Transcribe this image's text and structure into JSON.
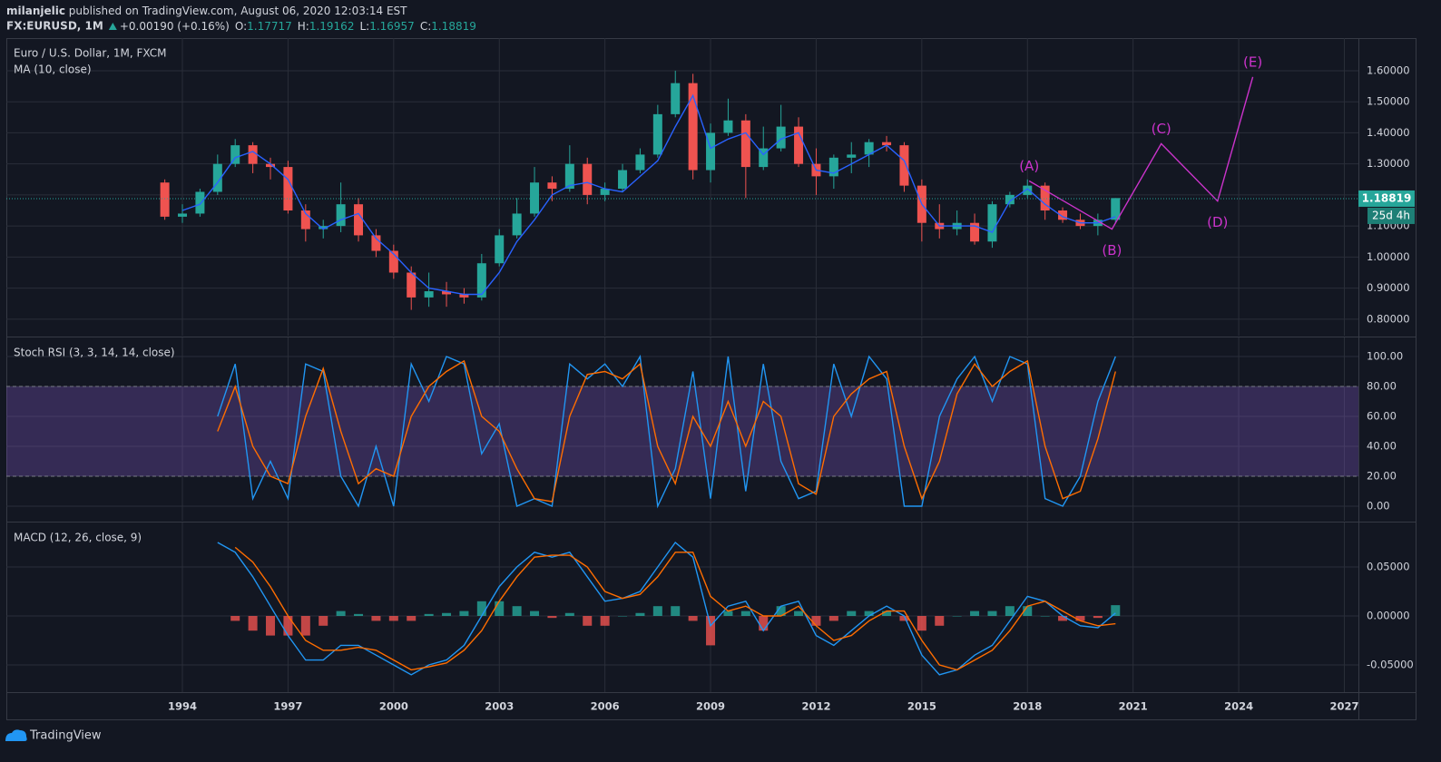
{
  "header": {
    "author": "milanjelic",
    "published": " published on TradingView.com, August 06, 2020 12:03:14 EST",
    "symbol": "FX:EURUSD, 1M",
    "change": "+0.00190 (+0.16%)",
    "ohlc": [
      {
        "label": "O:",
        "value": "1.17717"
      },
      {
        "label": "H:",
        "value": "1.19162"
      },
      {
        "label": "L:",
        "value": "1.16957"
      },
      {
        "label": "C:",
        "value": "1.18819"
      }
    ]
  },
  "footer": {
    "brand": "TradingView"
  },
  "chart_data": [
    {
      "type": "candlestick",
      "title": "Euro / U.S. Dollar, 1M, FXCM",
      "x": [
        1993.5,
        1994.0,
        1994.5,
        1995.0,
        1995.5,
        1996.0,
        1996.5,
        1997.0,
        1997.5,
        1998.0,
        1998.5,
        1999.0,
        1999.5,
        2000.0,
        2000.5,
        2001.0,
        2001.5,
        2002.0,
        2002.5,
        2003.0,
        2003.5,
        2004.0,
        2004.5,
        2005.0,
        2005.5,
        2006.0,
        2006.5,
        2007.0,
        2007.5,
        2008.0,
        2008.5,
        2009.0,
        2009.5,
        2010.0,
        2010.5,
        2011.0,
        2011.5,
        2012.0,
        2012.5,
        2013.0,
        2013.5,
        2014.0,
        2014.5,
        2015.0,
        2015.5,
        2016.0,
        2016.5,
        2017.0,
        2017.5,
        2018.0,
        2018.5,
        2019.0,
        2019.5,
        2020.0,
        2020.5
      ],
      "open": [
        1.24,
        1.13,
        1.14,
        1.21,
        1.3,
        1.36,
        1.3,
        1.29,
        1.15,
        1.09,
        1.1,
        1.17,
        1.07,
        1.02,
        0.95,
        0.87,
        0.89,
        0.88,
        0.87,
        0.98,
        1.07,
        1.14,
        1.24,
        1.22,
        1.3,
        1.2,
        1.22,
        1.28,
        1.33,
        1.46,
        1.56,
        1.28,
        1.4,
        1.44,
        1.29,
        1.35,
        1.42,
        1.3,
        1.26,
        1.32,
        1.33,
        1.37,
        1.36,
        1.23,
        1.11,
        1.09,
        1.11,
        1.05,
        1.17,
        1.2,
        1.23,
        1.15,
        1.12,
        1.1,
        1.12
      ],
      "high": [
        1.25,
        1.17,
        1.22,
        1.33,
        1.38,
        1.37,
        1.32,
        1.31,
        1.17,
        1.12,
        1.24,
        1.19,
        1.09,
        1.04,
        0.97,
        0.95,
        0.92,
        0.9,
        1.01,
        1.09,
        1.19,
        1.29,
        1.26,
        1.36,
        1.32,
        1.24,
        1.3,
        1.35,
        1.49,
        1.6,
        1.59,
        1.43,
        1.51,
        1.46,
        1.42,
        1.49,
        1.45,
        1.35,
        1.33,
        1.37,
        1.38,
        1.39,
        1.37,
        1.25,
        1.17,
        1.15,
        1.14,
        1.18,
        1.21,
        1.25,
        1.24,
        1.16,
        1.14,
        1.14,
        1.19
      ],
      "low": [
        1.12,
        1.11,
        1.13,
        1.2,
        1.29,
        1.27,
        1.25,
        1.14,
        1.05,
        1.06,
        1.08,
        1.05,
        1.0,
        0.93,
        0.83,
        0.84,
        0.84,
        0.85,
        0.86,
        0.97,
        1.06,
        1.13,
        1.18,
        1.21,
        1.17,
        1.18,
        1.21,
        1.27,
        1.32,
        1.45,
        1.25,
        1.24,
        1.39,
        1.19,
        1.28,
        1.34,
        1.29,
        1.2,
        1.22,
        1.27,
        1.29,
        1.34,
        1.21,
        1.05,
        1.06,
        1.07,
        1.04,
        1.03,
        1.16,
        1.19,
        1.12,
        1.11,
        1.09,
        1.07,
        1.11
      ],
      "close": [
        1.13,
        1.14,
        1.21,
        1.3,
        1.36,
        1.3,
        1.29,
        1.15,
        1.09,
        1.1,
        1.17,
        1.07,
        1.02,
        0.95,
        0.87,
        0.89,
        0.88,
        0.87,
        0.98,
        1.07,
        1.14,
        1.24,
        1.22,
        1.3,
        1.2,
        1.22,
        1.28,
        1.33,
        1.46,
        1.56,
        1.28,
        1.4,
        1.44,
        1.29,
        1.35,
        1.42,
        1.3,
        1.26,
        1.32,
        1.33,
        1.37,
        1.36,
        1.23,
        1.11,
        1.09,
        1.11,
        1.05,
        1.17,
        1.2,
        1.23,
        1.15,
        1.12,
        1.1,
        1.12,
        1.19
      ],
      "up_color": "#26a69a",
      "down_color": "#ef5350",
      "series": [
        {
          "name": "MA (10, close)",
          "color": "#2962ff",
          "values": [
            null,
            1.15,
            1.17,
            1.24,
            1.32,
            1.34,
            1.3,
            1.25,
            1.14,
            1.09,
            1.12,
            1.14,
            1.06,
            1.01,
            0.95,
            0.9,
            0.89,
            0.88,
            0.88,
            0.95,
            1.05,
            1.12,
            1.2,
            1.23,
            1.24,
            1.22,
            1.21,
            1.26,
            1.31,
            1.42,
            1.52,
            1.35,
            1.38,
            1.4,
            1.33,
            1.38,
            1.4,
            1.28,
            1.27,
            1.3,
            1.33,
            1.36,
            1.31,
            1.17,
            1.1,
            1.1,
            1.1,
            1.08,
            1.18,
            1.22,
            1.17,
            1.13,
            1.11,
            1.11,
            1.13
          ]
        }
      ],
      "xlim": [
        1989,
        2027.4
      ],
      "xticks": [
        1994,
        1997,
        2000,
        2003,
        2006,
        2009,
        2012,
        2015,
        2018,
        2021,
        2024,
        2027
      ],
      "ylim": [
        0.747,
        1.705
      ],
      "yticks": [
        {
          "value": 0.8,
          "label": "0.80000"
        },
        {
          "value": 0.9,
          "label": "0.90000"
        },
        {
          "value": 1.0,
          "label": "1.00000"
        },
        {
          "value": 1.1,
          "label": "1.10000"
        },
        {
          "value": 1.2,
          "label": "1.20000"
        },
        {
          "value": 1.3,
          "label": "1.30000"
        },
        {
          "value": 1.4,
          "label": "1.40000"
        },
        {
          "value": 1.5,
          "label": "1.50000"
        },
        {
          "value": 1.6,
          "label": "1.60000"
        }
      ],
      "grid": true,
      "last_price": {
        "value": 1.18819,
        "label": "1.18819"
      },
      "countdown": "25d 4h",
      "waves": {
        "color": "#cc33cc",
        "points": [
          {
            "x": 2018.05,
            "y": 1.245,
            "label": "(A)"
          },
          {
            "x": 2020.4,
            "y": 1.09,
            "label": "(B)"
          },
          {
            "x": 2021.8,
            "y": 1.365,
            "label": "(C)"
          },
          {
            "x": 2023.4,
            "y": 1.18,
            "label": "(D)"
          },
          {
            "x": 2024.4,
            "y": 1.58,
            "label": "(E)"
          }
        ]
      }
    },
    {
      "type": "line",
      "title": "Stoch RSI (3, 3, 14, 14, close)",
      "x": [
        1995.0,
        1995.5,
        1996.0,
        1996.5,
        1997.0,
        1997.5,
        1998.0,
        1998.5,
        1999.0,
        1999.5,
        2000.0,
        2000.5,
        2001.0,
        2001.5,
        2002.0,
        2002.5,
        2003.0,
        2003.5,
        2004.0,
        2004.5,
        2005.0,
        2005.5,
        2006.0,
        2006.5,
        2007.0,
        2007.5,
        2008.0,
        2008.5,
        2009.0,
        2009.5,
        2010.0,
        2010.5,
        2011.0,
        2011.5,
        2012.0,
        2012.5,
        2013.0,
        2013.5,
        2014.0,
        2014.5,
        2015.0,
        2015.5,
        2016.0,
        2016.5,
        2017.0,
        2017.5,
        2018.0,
        2018.5,
        2019.0,
        2019.5,
        2020.0,
        2020.5
      ],
      "series": [
        {
          "color": "#2196f3",
          "values": [
            60,
            95,
            5,
            30,
            5,
            95,
            90,
            20,
            0,
            40,
            0,
            95,
            70,
            100,
            95,
            35,
            55,
            0,
            5,
            0,
            95,
            85,
            95,
            80,
            100,
            0,
            25,
            90,
            5,
            100,
            10,
            95,
            30,
            5,
            10,
            95,
            60,
            100,
            85,
            0,
            0,
            60,
            85,
            100,
            70,
            100,
            95,
            5,
            0,
            20,
            70,
            100
          ]
        },
        {
          "color": "#ff6d00",
          "values": [
            50,
            80,
            40,
            20,
            15,
            60,
            92,
            50,
            15,
            25,
            20,
            60,
            80,
            90,
            97,
            60,
            50,
            25,
            5,
            3,
            60,
            88,
            90,
            85,
            95,
            40,
            15,
            60,
            40,
            70,
            40,
            70,
            60,
            15,
            8,
            60,
            75,
            85,
            90,
            40,
            5,
            30,
            75,
            95,
            80,
            90,
            97,
            40,
            5,
            10,
            45,
            90
          ]
        }
      ],
      "band": [
        20,
        80
      ],
      "band_color": "#7e57c2",
      "ylim": [
        -9.7,
        112.7
      ],
      "yticks": [
        {
          "value": 0,
          "label": "0.00"
        },
        {
          "value": 20,
          "label": "20.00"
        },
        {
          "value": 40,
          "label": "40.00"
        },
        {
          "value": 60,
          "label": "60.00"
        },
        {
          "value": 80,
          "label": "80.00"
        },
        {
          "value": 100,
          "label": "100.00"
        }
      ],
      "grid": true
    },
    {
      "type": "macd",
      "title": "MACD (12, 26, close, 9)",
      "x": [
        1995.0,
        1995.5,
        1996.0,
        1996.5,
        1997.0,
        1997.5,
        1998.0,
        1998.5,
        1999.0,
        1999.5,
        2000.0,
        2000.5,
        2001.0,
        2001.5,
        2002.0,
        2002.5,
        2003.0,
        2003.5,
        2004.0,
        2004.5,
        2005.0,
        2005.5,
        2006.0,
        2006.5,
        2007.0,
        2007.5,
        2008.0,
        2008.5,
        2009.0,
        2009.5,
        2010.0,
        2010.5,
        2011.0,
        2011.5,
        2012.0,
        2012.5,
        2013.0,
        2013.5,
        2014.0,
        2014.5,
        2015.0,
        2015.5,
        2016.0,
        2016.5,
        2017.0,
        2017.5,
        2018.0,
        2018.5,
        2019.0,
        2019.5,
        2020.0,
        2020.5
      ],
      "histogram": {
        "up_color": "#26a69a",
        "down_color": "#ef5350",
        "values": [
          null,
          -0.005,
          -0.015,
          -0.02,
          -0.02,
          -0.02,
          -0.01,
          0.005,
          0.002,
          -0.005,
          -0.005,
          -0.005,
          0.002,
          0.003,
          0.005,
          0.015,
          0.015,
          0.01,
          0.005,
          -0.002,
          0.003,
          -0.01,
          -0.01,
          0.0,
          0.003,
          0.01,
          0.01,
          -0.005,
          -0.03,
          0.005,
          0.005,
          -0.015,
          0.01,
          0.005,
          -0.01,
          -0.005,
          0.005,
          0.005,
          0.005,
          -0.005,
          -0.015,
          -0.01,
          0.0,
          0.005,
          0.005,
          0.01,
          0.01,
          0.0,
          -0.005,
          -0.005,
          -0.002,
          0.011
        ]
      },
      "series": [
        {
          "color": "#2196f3",
          "values": [
            0.075,
            0.065,
            0.04,
            0.01,
            -0.02,
            -0.045,
            -0.045,
            -0.03,
            -0.03,
            -0.04,
            -0.05,
            -0.06,
            -0.05,
            -0.045,
            -0.03,
            0.0,
            0.03,
            0.05,
            0.065,
            0.06,
            0.065,
            0.04,
            0.015,
            0.018,
            0.025,
            0.05,
            0.075,
            0.06,
            -0.01,
            0.01,
            0.015,
            -0.015,
            0.01,
            0.015,
            -0.02,
            -0.03,
            -0.015,
            0.0,
            0.01,
            0.0,
            -0.04,
            -0.06,
            -0.055,
            -0.04,
            -0.03,
            -0.005,
            0.02,
            0.015,
            0.0,
            -0.01,
            -0.012,
            0.003
          ]
        },
        {
          "color": "#ff6d00",
          "values": [
            null,
            0.07,
            0.055,
            0.03,
            0.0,
            -0.025,
            -0.035,
            -0.035,
            -0.032,
            -0.035,
            -0.045,
            -0.055,
            -0.052,
            -0.048,
            -0.035,
            -0.015,
            0.015,
            0.04,
            0.06,
            0.062,
            0.062,
            0.05,
            0.025,
            0.018,
            0.022,
            0.04,
            0.065,
            0.065,
            0.02,
            0.005,
            0.01,
            0.0,
            0.0,
            0.01,
            -0.01,
            -0.025,
            -0.02,
            -0.005,
            0.005,
            0.005,
            -0.025,
            -0.05,
            -0.055,
            -0.045,
            -0.035,
            -0.015,
            0.01,
            0.015,
            0.005,
            -0.005,
            -0.01,
            -0.008
          ]
        }
      ],
      "ylim": [
        -0.0778,
        0.0954
      ],
      "yticks": [
        {
          "value": -0.05,
          "label": "-0.05000"
        },
        {
          "value": 0,
          "label": "0.00000"
        },
        {
          "value": 0.05,
          "label": "0.05000"
        }
      ],
      "grid": true
    }
  ]
}
